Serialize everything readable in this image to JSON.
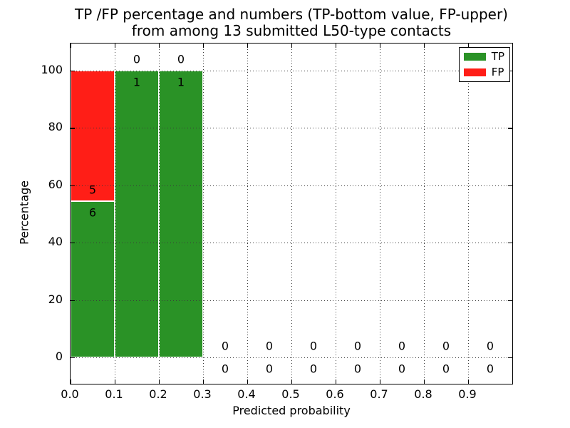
{
  "chart_data": {
    "type": "bar",
    "stacked": true,
    "title_line1": "TP /FP percentage and numbers (TP-bottom value, FP-upper)",
    "title_line2": "from among 13 submitted L50-type contacts",
    "xlabel": "Predicted probability",
    "ylabel": "Percentage",
    "total_contacts": 13,
    "xlim": [
      0.0,
      1.0
    ],
    "ylim": [
      -9.2,
      110
    ],
    "grid": "dotted",
    "legend_position": "upper right",
    "bin_width": 0.1,
    "bin_edges": [
      0.0,
      0.1,
      0.2,
      0.3,
      0.4,
      0.5,
      0.6,
      0.7,
      0.8,
      0.9,
      1.0
    ],
    "categories": [
      0.05,
      0.15,
      0.25,
      0.35,
      0.45,
      0.55,
      0.65,
      0.75,
      0.85,
      0.95
    ],
    "x_ticks": [
      {
        "value": 0.0,
        "label": "0.0"
      },
      {
        "value": 0.1,
        "label": "0.1"
      },
      {
        "value": 0.2,
        "label": "0.2"
      },
      {
        "value": 0.3,
        "label": "0.3"
      },
      {
        "value": 0.4,
        "label": "0.4"
      },
      {
        "value": 0.5,
        "label": "0.5"
      },
      {
        "value": 0.6,
        "label": "0.6"
      },
      {
        "value": 0.7,
        "label": "0.7"
      },
      {
        "value": 0.8,
        "label": "0.8"
      },
      {
        "value": 0.9,
        "label": "0.9"
      }
    ],
    "y_ticks": [
      {
        "value": 0,
        "label": "0"
      },
      {
        "value": 20,
        "label": "20"
      },
      {
        "value": 40,
        "label": "40"
      },
      {
        "value": 60,
        "label": "60"
      },
      {
        "value": 80,
        "label": "80"
      },
      {
        "value": 100,
        "label": "100"
      }
    ],
    "series": [
      {
        "name": "TP",
        "color": "#2a9226",
        "counts": [
          6,
          1,
          1,
          0,
          0,
          0,
          0,
          0,
          0,
          0
        ],
        "percent": [
          54.545,
          100,
          100,
          0,
          0,
          0,
          0,
          0,
          0,
          0
        ]
      },
      {
        "name": "FP",
        "color": "#ff1e17",
        "counts": [
          5,
          0,
          0,
          0,
          0,
          0,
          0,
          0,
          0,
          0
        ],
        "percent": [
          45.455,
          0,
          0,
          0,
          0,
          0,
          0,
          0,
          0,
          0
        ]
      }
    ],
    "bar_label_note": "FP count shown above TP bar top, TP count shown below"
  },
  "legend": {
    "items": [
      {
        "label": "TP",
        "color": "#2a9226"
      },
      {
        "label": "FP",
        "color": "#ff1e17"
      }
    ]
  }
}
